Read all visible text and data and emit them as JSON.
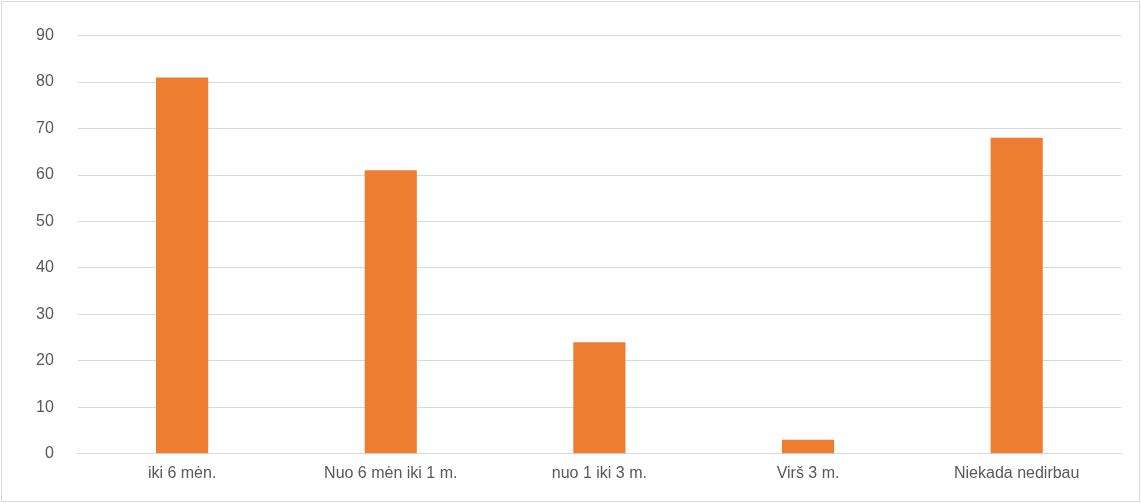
{
  "chart_data": {
    "type": "bar",
    "categories": [
      "iki 6 mėn.",
      "Nuo 6 mėn iki 1 m.",
      "nuo 1 iki 3 m.",
      "Virš 3 m.",
      "Niekada nedirbau"
    ],
    "values": [
      81,
      61,
      24,
      3,
      68
    ],
    "color": "#ed7d31",
    "ylim": [
      0,
      90
    ],
    "yticks": [
      0,
      10,
      20,
      30,
      40,
      50,
      60,
      70,
      80,
      90
    ],
    "grid": "y"
  }
}
